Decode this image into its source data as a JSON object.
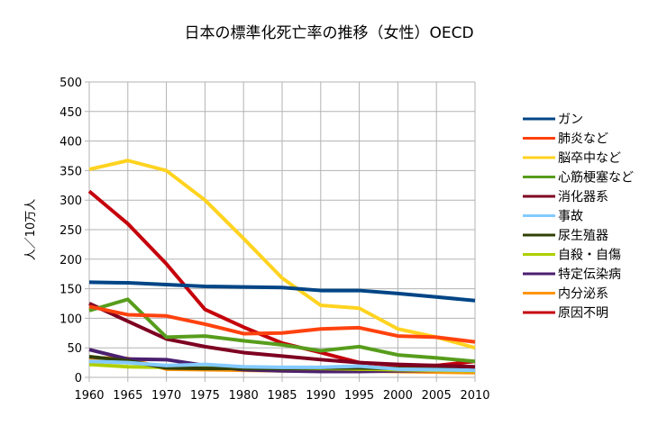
{
  "chart_data": {
    "type": "line",
    "title": "日本の標準化死亡率の推移（女性）OECD",
    "xlabel": "",
    "ylabel": "人／10万人",
    "ylim": [
      0,
      500
    ],
    "yticks": [
      0,
      50,
      100,
      150,
      200,
      250,
      300,
      350,
      400,
      450,
      500
    ],
    "x": [
      1960,
      1965,
      1970,
      1975,
      1980,
      1985,
      1990,
      1995,
      2000,
      2005,
      2010
    ],
    "grid": true,
    "legend_position": "right",
    "series": [
      {
        "name": "ガン",
        "color": "#004586",
        "values": [
          161,
          160,
          157,
          154,
          153,
          152,
          147,
          147,
          142,
          136,
          130
        ]
      },
      {
        "name": "肺炎など",
        "color": "#ff420e",
        "values": [
          120,
          106,
          104,
          90,
          74,
          75,
          82,
          84,
          70,
          68,
          60
        ]
      },
      {
        "name": "脳卒中など",
        "color": "#ffd320",
        "values": [
          352,
          367,
          350,
          300,
          235,
          168,
          122,
          117,
          82,
          68,
          50
        ]
      },
      {
        "name": "心筋梗塞など",
        "color": "#579d1c",
        "values": [
          113,
          132,
          68,
          70,
          62,
          55,
          45,
          52,
          38,
          33,
          27
        ]
      },
      {
        "name": "消化器系",
        "color": "#7e0021",
        "values": [
          125,
          95,
          65,
          52,
          42,
          36,
          30,
          25,
          22,
          20,
          18
        ]
      },
      {
        "name": "事故",
        "color": "#83caff",
        "values": [
          27,
          25,
          20,
          22,
          18,
          17,
          17,
          19,
          14,
          13,
          12
        ]
      },
      {
        "name": "尿生殖器",
        "color": "#314004",
        "values": [
          35,
          28,
          16,
          15,
          15,
          15,
          16,
          16,
          15,
          14,
          14
        ]
      },
      {
        "name": "自殺・自傷",
        "color": "#aecf00",
        "values": [
          22,
          18,
          17,
          17,
          16,
          15,
          15,
          14,
          13,
          12,
          11
        ]
      },
      {
        "name": "特定伝染病",
        "color": "#4b1f6f",
        "values": [
          47,
          31,
          30,
          20,
          13,
          11,
          10,
          10,
          11,
          12,
          13
        ]
      },
      {
        "name": "内分泌系",
        "color": "#ff950e",
        "values": [
          33,
          32,
          14,
          13,
          12,
          11,
          11,
          11,
          10,
          9,
          8
        ]
      },
      {
        "name": "原因不明",
        "color": "#c5000b",
        "values": [
          315,
          260,
          192,
          115,
          85,
          58,
          42,
          25,
          20,
          20,
          27
        ]
      }
    ]
  }
}
